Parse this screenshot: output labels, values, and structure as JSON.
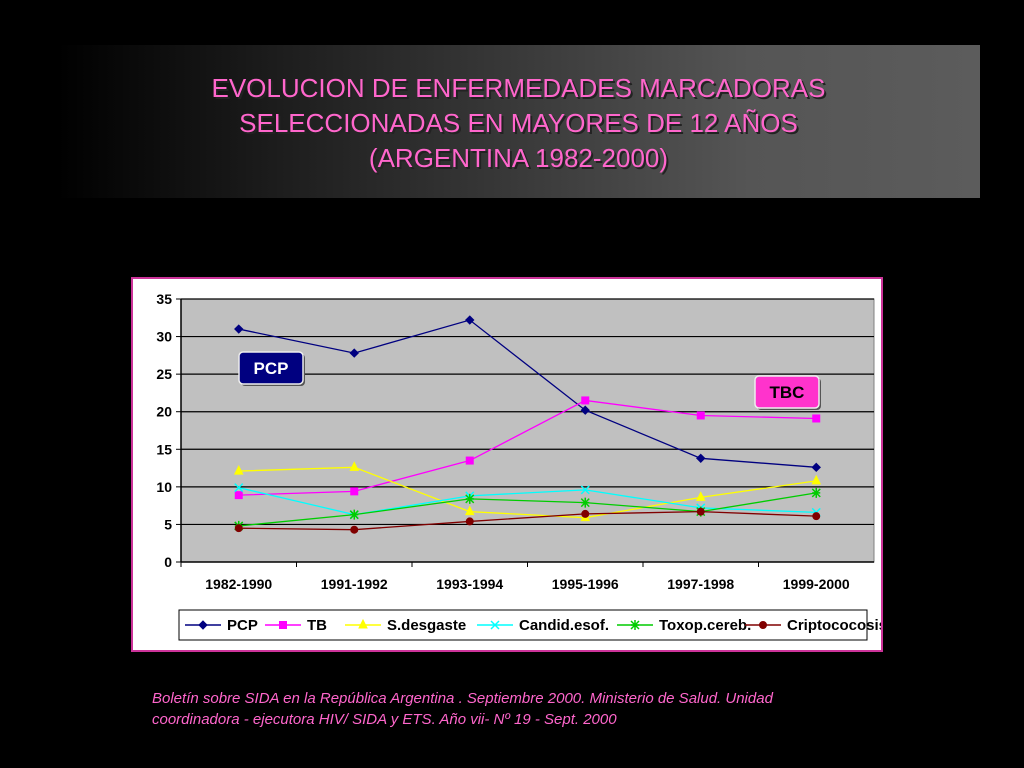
{
  "slide": {
    "title_lines": [
      "EVOLUCION DE ENFERMEDADES MARCADORAS",
      "SELECCIONADAS EN MAYORES DE 12 AÑOS",
      "(ARGENTINA 1982-2000)"
    ],
    "source_lines": [
      "Boletín sobre SIDA en la República Argentina . Septiembre 2000. Ministerio de Salud. Unidad",
      "coordinadora - ejecutora HIV/ SIDA y ETS.  Año vii- Nº 19 - Sept. 2000"
    ],
    "title_color": "#ff66cc"
  },
  "chart_data": {
    "type": "line",
    "categories": [
      "1982-1990",
      "1991-1992",
      "1993-1994",
      "1995-1996",
      "1997-1998",
      "1999-2000"
    ],
    "ylim": [
      0,
      35
    ],
    "yticks": [
      0,
      5,
      10,
      15,
      20,
      25,
      30,
      35
    ],
    "grid": true,
    "legend_position": "bottom",
    "series": [
      {
        "name": "PCP",
        "color": "#000080",
        "marker": "diamond",
        "values": [
          31.0,
          27.8,
          32.2,
          20.2,
          13.8,
          12.6
        ]
      },
      {
        "name": "TB",
        "color": "#ff00ff",
        "marker": "square",
        "values": [
          8.9,
          9.4,
          13.5,
          21.5,
          19.5,
          19.1
        ]
      },
      {
        "name": "S.desgaste",
        "color": "#ffff00",
        "marker": "triangle",
        "values": [
          12.1,
          12.6,
          6.7,
          5.9,
          8.6,
          10.8
        ]
      },
      {
        "name": "Candid.esof.",
        "color": "#00ffff",
        "marker": "x",
        "values": [
          9.9,
          6.3,
          8.8,
          9.6,
          7.2,
          6.6
        ]
      },
      {
        "name": "Toxop.cereb.",
        "color": "#00cc00",
        "marker": "asterisk",
        "values": [
          4.8,
          6.3,
          8.4,
          7.9,
          6.7,
          9.2
        ]
      },
      {
        "name": "Criptococosis",
        "color": "#800000",
        "marker": "circle",
        "values": [
          4.5,
          4.3,
          5.4,
          6.4,
          6.7,
          6.1
        ]
      }
    ],
    "annotations": [
      {
        "text": "PCP",
        "background": "#000080",
        "color": "#ffffff"
      },
      {
        "text": "TBC",
        "background": "#ff33cc",
        "color": "#000000"
      }
    ]
  }
}
